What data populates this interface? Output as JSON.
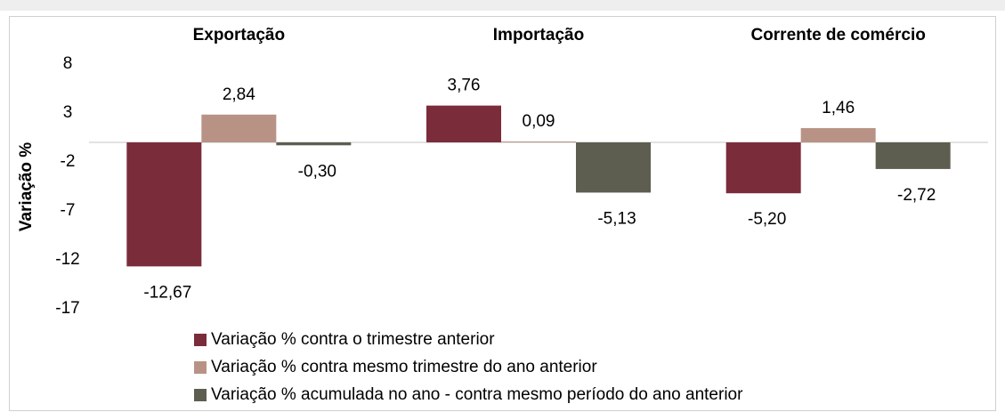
{
  "chart_data": {
    "type": "bar",
    "y_label": "Variação %",
    "categories": [
      "Exportação",
      "Importação",
      "Corrente de comércio"
    ],
    "series": [
      {
        "name": "Variação % contra o trimestre anterior",
        "color": "#7b2c3a",
        "values": [
          -12.67,
          3.76,
          -5.2
        ],
        "value_labels": [
          "-12,67",
          "3,76",
          "-5,20"
        ]
      },
      {
        "name": "Variação % contra mesmo trimestre do ano anterior",
        "color": "#b89385",
        "values": [
          2.84,
          0.09,
          1.46
        ],
        "value_labels": [
          "2,84",
          "0,09",
          "1,46"
        ]
      },
      {
        "name": "Variação % acumulada no ano - contra mesmo período do ano anterior",
        "color": "#5e5e50",
        "values": [
          -0.3,
          -5.13,
          -2.72
        ],
        "value_labels": [
          "-0,30",
          "-5,13",
          "-2,72"
        ]
      }
    ],
    "ylim": [
      -17,
      8
    ],
    "yticks": [
      8,
      3,
      -2,
      -7,
      -12,
      -17
    ]
  }
}
